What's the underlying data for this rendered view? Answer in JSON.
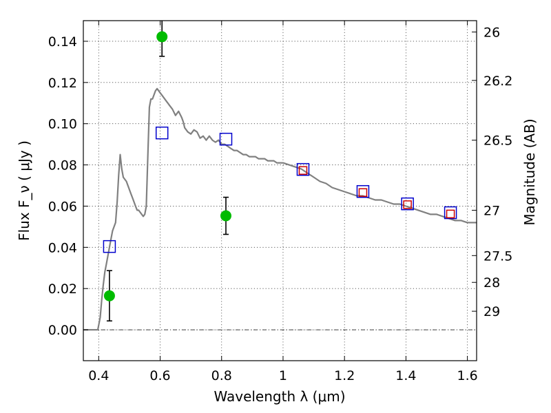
{
  "chart_data": {
    "type": "scatter",
    "title": "",
    "xlabel": "Wavelength  λ (μm)",
    "ylabel": "Flux  F_ν  ( μJy )",
    "ylabel_right": "Magnitude (AB)",
    "xlim": [
      0.35,
      1.63
    ],
    "ylim": [
      -0.015,
      0.15
    ],
    "grid": true,
    "x_ticks": [
      {
        "v": 0.4,
        "label": "0.4"
      },
      {
        "v": 0.6,
        "label": "0.6"
      },
      {
        "v": 0.8,
        "label": "0.8"
      },
      {
        "v": 1.0,
        "label": "1"
      },
      {
        "v": 1.2,
        "label": "1.2"
      },
      {
        "v": 1.4,
        "label": "1.4"
      },
      {
        "v": 1.6,
        "label": "1.6"
      }
    ],
    "y_ticks": [
      {
        "v": 0.0,
        "label": "0.00"
      },
      {
        "v": 0.02,
        "label": "0.02"
      },
      {
        "v": 0.04,
        "label": "0.04"
      },
      {
        "v": 0.06,
        "label": "0.06"
      },
      {
        "v": 0.08,
        "label": "0.08"
      },
      {
        "v": 0.1,
        "label": "0.10"
      },
      {
        "v": 0.12,
        "label": "0.12"
      },
      {
        "v": 0.14,
        "label": "0.14"
      }
    ],
    "right_ticks": [
      {
        "flux": 0.1445,
        "label": "26"
      },
      {
        "flux": 0.121,
        "label": "26.2"
      },
      {
        "flux": 0.092,
        "label": "26.5"
      },
      {
        "flux": 0.058,
        "label": "27"
      },
      {
        "flux": 0.036,
        "label": "27.5"
      },
      {
        "flux": 0.023,
        "label": "28"
      },
      {
        "flux": 0.009,
        "label": "29"
      }
    ],
    "series": [
      {
        "type": "line",
        "color": "#808080",
        "x": [
          0.35,
          0.39,
          0.397,
          0.405,
          0.41,
          0.415,
          0.42,
          0.425,
          0.43,
          0.435,
          0.44,
          0.445,
          0.45,
          0.455,
          0.46,
          0.465,
          0.47,
          0.475,
          0.48,
          0.485,
          0.49,
          0.495,
          0.5,
          0.505,
          0.51,
          0.515,
          0.52,
          0.525,
          0.53,
          0.535,
          0.54,
          0.545,
          0.55,
          0.555,
          0.56,
          0.565,
          0.57,
          0.575,
          0.58,
          0.585,
          0.59,
          0.595,
          0.6,
          0.605,
          0.61,
          0.615,
          0.62,
          0.625,
          0.63,
          0.635,
          0.64,
          0.65,
          0.66,
          0.67,
          0.675,
          0.68,
          0.69,
          0.7,
          0.71,
          0.72,
          0.73,
          0.74,
          0.75,
          0.76,
          0.77,
          0.78,
          0.79,
          0.8,
          0.81,
          0.82,
          0.83,
          0.84,
          0.85,
          0.86,
          0.87,
          0.88,
          0.89,
          0.9,
          0.91,
          0.92,
          0.93,
          0.94,
          0.95,
          0.96,
          0.97,
          0.98,
          0.99,
          1.0,
          1.02,
          1.04,
          1.06,
          1.08,
          1.1,
          1.12,
          1.14,
          1.16,
          1.18,
          1.2,
          1.22,
          1.24,
          1.26,
          1.28,
          1.3,
          1.32,
          1.34,
          1.36,
          1.38,
          1.4,
          1.42,
          1.44,
          1.46,
          1.48,
          1.5,
          1.52,
          1.54,
          1.56,
          1.58,
          1.6,
          1.63
        ],
        "y": [
          0.0,
          0.0,
          0.0,
          0.006,
          0.015,
          0.022,
          0.028,
          0.032,
          0.036,
          0.04,
          0.044,
          0.048,
          0.05,
          0.052,
          0.062,
          0.075,
          0.085,
          0.078,
          0.074,
          0.073,
          0.072,
          0.07,
          0.068,
          0.066,
          0.064,
          0.062,
          0.06,
          0.058,
          0.058,
          0.057,
          0.056,
          0.055,
          0.056,
          0.06,
          0.085,
          0.108,
          0.112,
          0.112,
          0.114,
          0.116,
          0.117,
          0.116,
          0.115,
          0.114,
          0.113,
          0.112,
          0.111,
          0.11,
          0.109,
          0.108,
          0.107,
          0.104,
          0.106,
          0.103,
          0.101,
          0.098,
          0.096,
          0.095,
          0.097,
          0.096,
          0.093,
          0.094,
          0.092,
          0.094,
          0.092,
          0.091,
          0.092,
          0.09,
          0.09,
          0.089,
          0.088,
          0.087,
          0.087,
          0.086,
          0.085,
          0.085,
          0.084,
          0.084,
          0.084,
          0.083,
          0.083,
          0.083,
          0.082,
          0.082,
          0.082,
          0.081,
          0.081,
          0.081,
          0.08,
          0.079,
          0.078,
          0.076,
          0.074,
          0.072,
          0.071,
          0.069,
          0.068,
          0.067,
          0.066,
          0.065,
          0.065,
          0.064,
          0.063,
          0.063,
          0.062,
          0.061,
          0.061,
          0.06,
          0.059,
          0.058,
          0.057,
          0.056,
          0.056,
          0.055,
          0.054,
          0.053,
          0.053,
          0.052,
          0.052
        ]
      },
      {
        "type": "scatter",
        "marker": "circle",
        "color": "#00bb00",
        "x": [
          0.435,
          0.606,
          0.814
        ],
        "y": [
          0.0165,
          0.1422,
          0.0553
        ],
        "yerr": [
          0.0122,
          0.0095,
          0.009
        ]
      },
      {
        "type": "scatter",
        "marker": "square",
        "color": "#0000cc",
        "x": [
          0.435,
          0.606,
          0.814,
          1.065,
          1.26,
          1.405,
          1.545
        ],
        "y": [
          0.0404,
          0.0955,
          0.0925,
          0.0778,
          0.0671,
          0.0611,
          0.0568
        ]
      },
      {
        "type": "scatter",
        "marker": "square",
        "color": "#cc0000",
        "x": [
          1.065,
          1.26,
          1.405,
          1.545
        ],
        "y": [
          0.0773,
          0.0666,
          0.0607,
          0.0562
        ]
      }
    ]
  }
}
